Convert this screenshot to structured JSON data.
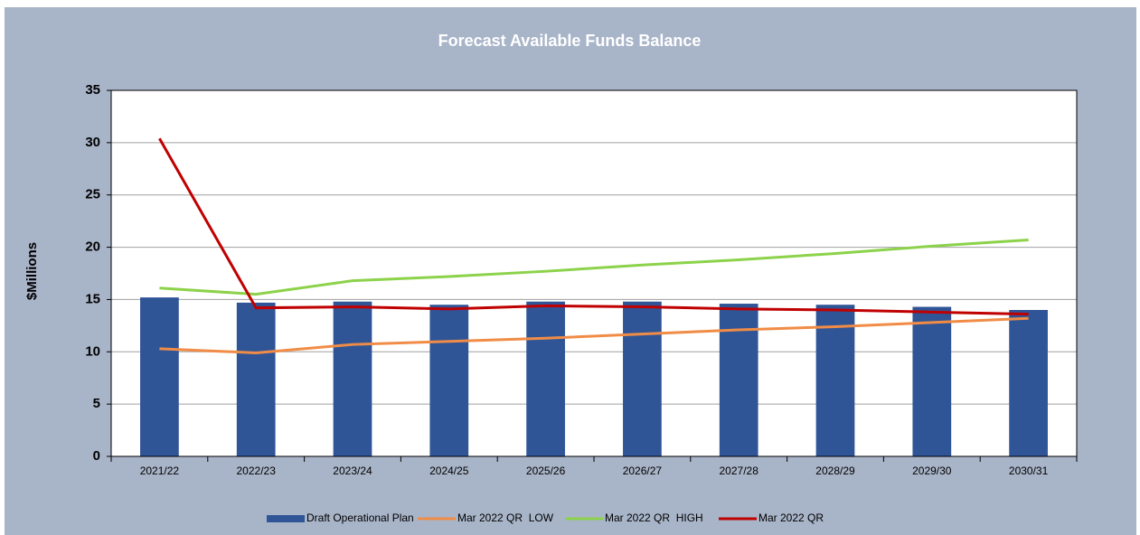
{
  "chart_data": {
    "type": "bar_line",
    "title": "Forecast Available Funds Balance",
    "y_label": "$Millions",
    "categories": [
      "2021/22",
      "2022/23",
      "2023/24",
      "2024/25",
      "2025/26",
      "2026/27",
      "2027/28",
      "2028/29",
      "2029/30",
      "2030/31"
    ],
    "series": [
      {
        "name": "Draft Operational Plan",
        "kind": "bar",
        "color": "#2f5597",
        "values": [
          15.2,
          14.7,
          14.8,
          14.5,
          14.8,
          14.8,
          14.6,
          14.5,
          14.3,
          14.0
        ]
      },
      {
        "name": "Mar 2022 QR  LOW",
        "kind": "line",
        "color": "#f08c46",
        "values": [
          10.3,
          9.9,
          10.7,
          11.0,
          11.3,
          11.7,
          12.1,
          12.4,
          12.8,
          13.2
        ]
      },
      {
        "name": "Mar 2022 QR  HIGH",
        "kind": "line",
        "color": "#8cd24a",
        "values": [
          16.1,
          15.5,
          16.8,
          17.2,
          17.7,
          18.3,
          18.8,
          19.4,
          20.1,
          20.7
        ]
      },
      {
        "name": "Mar 2022 QR",
        "kind": "line",
        "color": "#c00000",
        "values": [
          30.4,
          14.2,
          14.3,
          14.1,
          14.4,
          14.3,
          14.1,
          14.0,
          13.8,
          13.6
        ]
      }
    ],
    "ylim": [
      0,
      35
    ],
    "yticks": [
      0,
      5,
      10,
      15,
      20,
      25,
      30,
      35
    ],
    "grid": true,
    "legend": "bottom"
  }
}
